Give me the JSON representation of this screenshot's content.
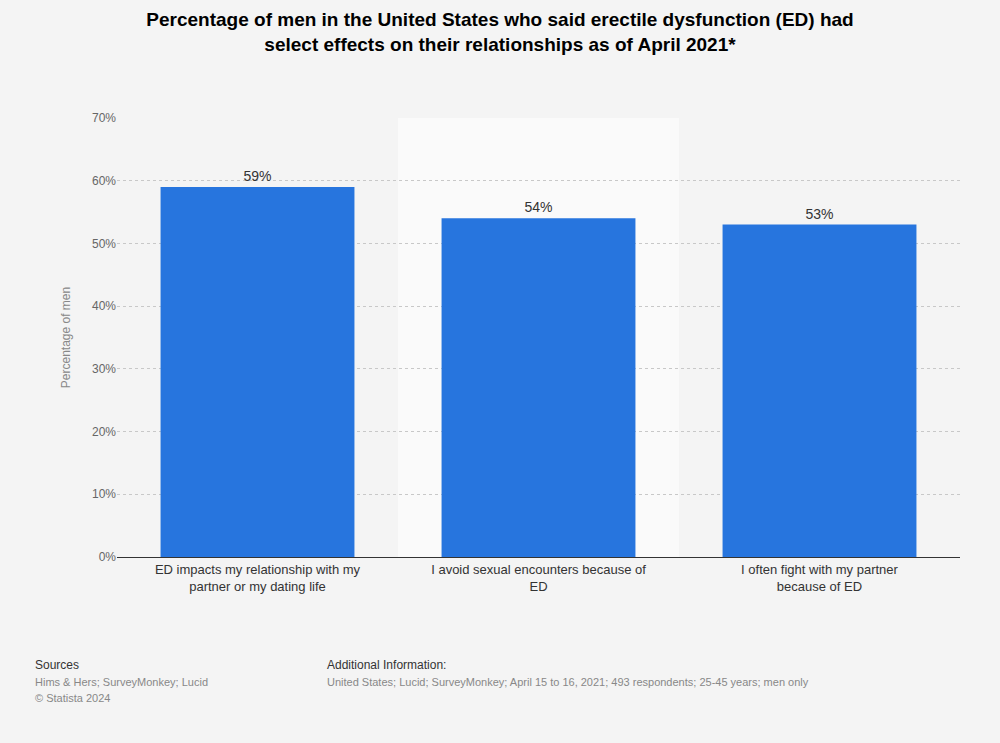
{
  "chart_data": {
    "type": "bar",
    "title": "Percentage of men in the United States who said erectile dysfunction (ED) had select effects on their relationships as of April 2021*",
    "ylabel": "Percentage of men",
    "categories": [
      "ED impacts my relationship with my partner or my dating life",
      "I avoid sexual encounters because of ED",
      "I often fight with my partner because of ED"
    ],
    "values": [
      59,
      54,
      53
    ],
    "value_labels": [
      "59%",
      "54%",
      "53%"
    ],
    "color": "#2775de",
    "ylim": [
      0,
      70
    ],
    "yticks": [
      {
        "value": 0,
        "label": "0%"
      },
      {
        "value": 10,
        "label": "10%"
      },
      {
        "value": 20,
        "label": "20%"
      },
      {
        "value": 30,
        "label": "30%"
      },
      {
        "value": 40,
        "label": "40%"
      },
      {
        "value": 50,
        "label": "50%"
      },
      {
        "value": 60,
        "label": "60%"
      },
      {
        "value": 70,
        "label": "70%"
      }
    ],
    "grid": true,
    "data_labels": true,
    "annotations": [
      "Sources",
      "Hims & Hers; SurveyMonkey; Lucid",
      "© Statista 2024",
      "Additional Information:",
      "United States; Lucid; SurveyMonkey; April 15 to 16, 2021; 493 respondents; 25-45 years; men only"
    ]
  }
}
